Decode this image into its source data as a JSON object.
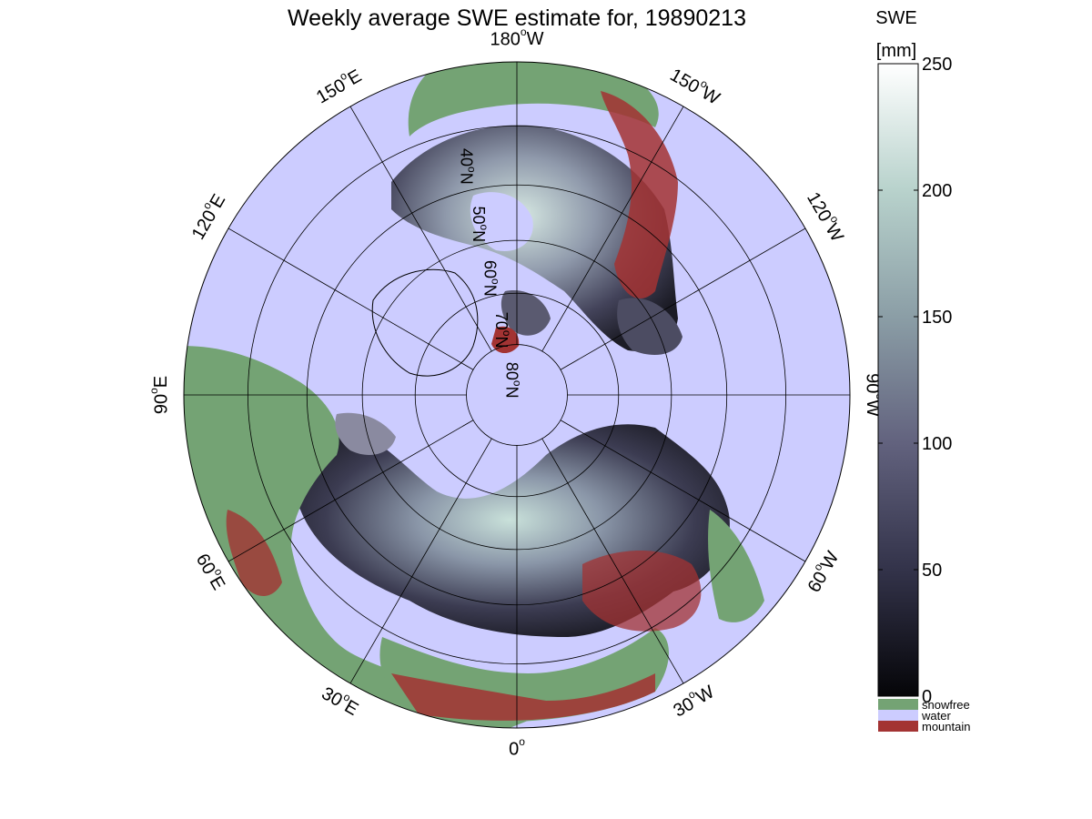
{
  "map": {
    "title": "Weekly average SWE estimate for, 19890213",
    "projection": "north polar stereographic",
    "lon_labels": [
      {
        "text": "90",
        "unit": "W",
        "lon": -90
      },
      {
        "text": "60",
        "unit": "W",
        "lon": -60
      },
      {
        "text": "120",
        "unit": "W",
        "lon": -120
      },
      {
        "text": "30",
        "unit": "W",
        "lon": -30
      },
      {
        "text": "150",
        "unit": "W",
        "lon": -150
      },
      {
        "text": "0",
        "unit": "",
        "lon": 0
      },
      {
        "text": "180",
        "unit": "W",
        "lon": 180
      },
      {
        "text": "30",
        "unit": "E",
        "lon": 30
      },
      {
        "text": "150",
        "unit": "E",
        "lon": 150
      },
      {
        "text": "60",
        "unit": "E",
        "lon": 60
      },
      {
        "text": "120",
        "unit": "E",
        "lon": 120
      },
      {
        "text": "90",
        "unit": "E",
        "lon": 90
      }
    ],
    "lat_labels": [
      {
        "text": "80",
        "unit": "N",
        "lat": 80
      },
      {
        "text": "70",
        "unit": "N",
        "lat": 70
      },
      {
        "text": "60",
        "unit": "N",
        "lat": 60
      },
      {
        "text": "50",
        "unit": "N",
        "lat": 50
      },
      {
        "text": "40",
        "unit": "N",
        "lat": 40
      }
    ],
    "colors": {
      "water": "#ccccff",
      "snowfree": "#74a374",
      "mountain": "#a33333"
    }
  },
  "colorbar": {
    "title_line1": "SWE",
    "title_line2": "[mm]",
    "ticks": [
      "0",
      "50",
      "100",
      "150",
      "200",
      "250"
    ],
    "range": [
      0,
      250
    ],
    "categories": [
      {
        "label": "snowfree",
        "color": "#74a374"
      },
      {
        "label": "water",
        "color": "#ccccff"
      },
      {
        "label": "mountain",
        "color": "#a33333"
      }
    ]
  }
}
